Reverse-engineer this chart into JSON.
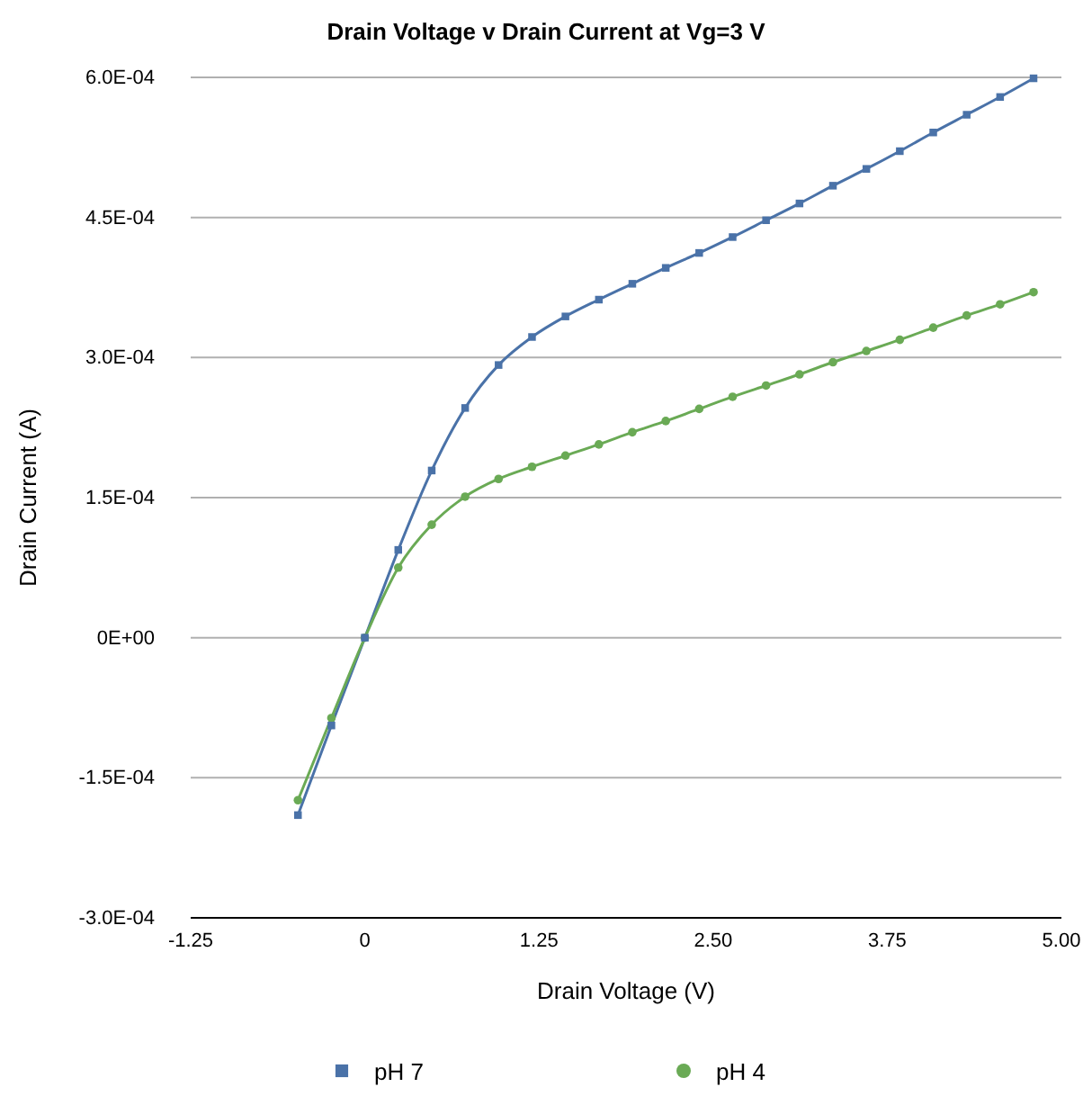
{
  "chart_data": {
    "type": "line",
    "title": "Drain Voltage v Drain Current at Vg=3 V",
    "xlabel": "Drain Voltage (V)",
    "ylabel": "Drain Current (A)",
    "x": [
      -0.48,
      -0.24,
      0,
      0.24,
      0.48,
      0.72,
      0.96,
      1.2,
      1.44,
      1.68,
      1.92,
      2.16,
      2.4,
      2.64,
      2.88,
      3.12,
      3.36,
      3.6,
      3.84,
      4.08,
      4.32,
      4.56,
      4.8
    ],
    "series": [
      {
        "name": "pH 7",
        "color": "#4a72a8",
        "marker": "square",
        "values": [
          -0.00019,
          -9.4e-05,
          0,
          9.4e-05,
          0.000179,
          0.000246,
          0.000292,
          0.000322,
          0.000344,
          0.000362,
          0.000379,
          0.000396,
          0.000412,
          0.000429,
          0.000447,
          0.000465,
          0.000484,
          0.000502,
          0.000521,
          0.000541,
          0.00056,
          0.000579,
          0.000599
        ]
      },
      {
        "name": "pH 4",
        "color": "#6aaa55",
        "marker": "circle",
        "values": [
          -0.000174,
          -8.6e-05,
          0,
          7.5e-05,
          0.000121,
          0.000151,
          0.00017,
          0.000183,
          0.000195,
          0.000207,
          0.00022,
          0.000232,
          0.000245,
          0.000258,
          0.00027,
          0.000282,
          0.000295,
          0.000307,
          0.000319,
          0.000332,
          0.000345,
          0.000357,
          0.00037
        ]
      }
    ],
    "xlim": [
      -1.25,
      5
    ],
    "xticks": [
      {
        "value": -1.25,
        "label": "-1.25"
      },
      {
        "value": 0,
        "label": "0"
      },
      {
        "value": 1.25,
        "label": "1.25"
      },
      {
        "value": 2.5,
        "label": "2.50"
      },
      {
        "value": 3.75,
        "label": "3.75"
      },
      {
        "value": 5,
        "label": "5.00"
      }
    ],
    "ylim": [
      -0.0003,
      0.0006
    ],
    "yticks": [
      {
        "value": -0.0003,
        "label": "-3.0E-04"
      },
      {
        "value": -0.00015,
        "label": "-1.5E-04"
      },
      {
        "value": 0,
        "label": "0E+00"
      },
      {
        "value": 0.00015,
        "label": "1.5E-04"
      },
      {
        "value": 0.0003,
        "label": "3.0E-04"
      },
      {
        "value": 0.00045,
        "label": "4.5E-04"
      },
      {
        "value": 0.0006,
        "label": "6.0E-04"
      }
    ],
    "grid": "y",
    "legend": "bottom",
    "line_style": "solid"
  }
}
